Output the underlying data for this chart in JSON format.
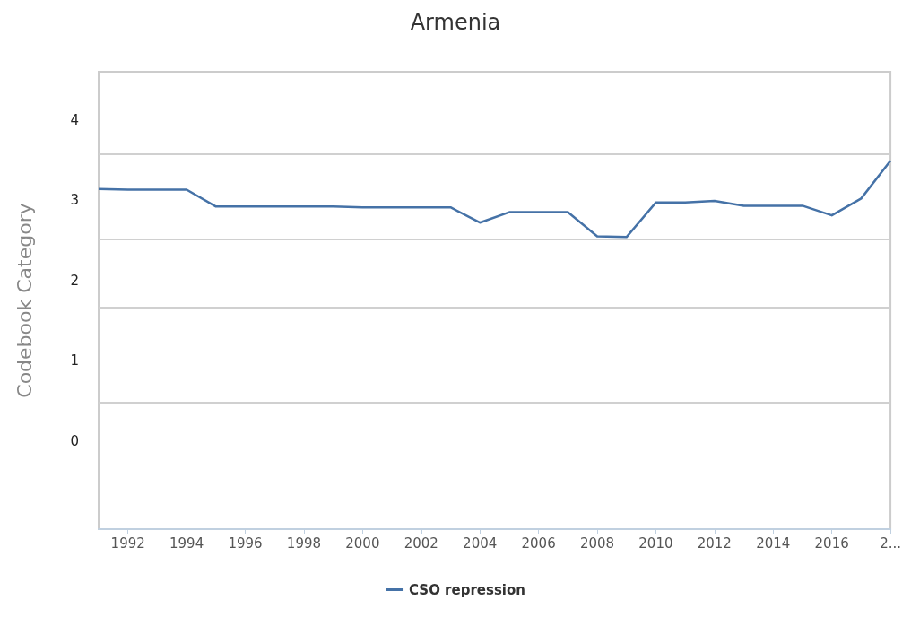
{
  "chart_data": {
    "type": "line",
    "title": "Armenia",
    "ylabel": "Codebook Category",
    "x": [
      1991,
      1992,
      1993,
      1994,
      1995,
      1996,
      1997,
      1998,
      1999,
      2000,
      2001,
      2002,
      2003,
      2004,
      2005,
      2006,
      2007,
      2008,
      2009,
      2010,
      2011,
      2012,
      2013,
      2014,
      2015,
      2016,
      2017,
      2018
    ],
    "series": [
      {
        "name": "CSO repression",
        "color": "#4572a7",
        "values": [
          3.14,
          3.13,
          3.13,
          3.13,
          2.92,
          2.92,
          2.92,
          2.92,
          2.92,
          2.91,
          2.91,
          2.91,
          2.91,
          2.72,
          2.85,
          2.85,
          2.85,
          2.55,
          2.54,
          2.97,
          2.97,
          2.99,
          2.93,
          2.93,
          2.93,
          2.81,
          3.02,
          3.49
        ]
      }
    ],
    "xlim": [
      1991,
      2018
    ],
    "xticks": [
      1992,
      1994,
      1996,
      1998,
      2000,
      2002,
      2004,
      2006,
      2008,
      2010,
      2012,
      2014,
      2016,
      {
        "value": 2018,
        "label": "2..."
      }
    ],
    "ylim": [
      -1.1,
      4.6
    ],
    "yticks": [
      0,
      1,
      2,
      3,
      4
    ],
    "ref_lines": [
      {
        "axis": "y",
        "value": 3.57
      },
      {
        "axis": "y",
        "value": 2.51
      },
      {
        "axis": "y",
        "value": 1.66
      },
      {
        "axis": "y",
        "value": 0.48
      }
    ],
    "grid": false,
    "legend": "bottom",
    "marker": "none",
    "line_style": "solid"
  }
}
